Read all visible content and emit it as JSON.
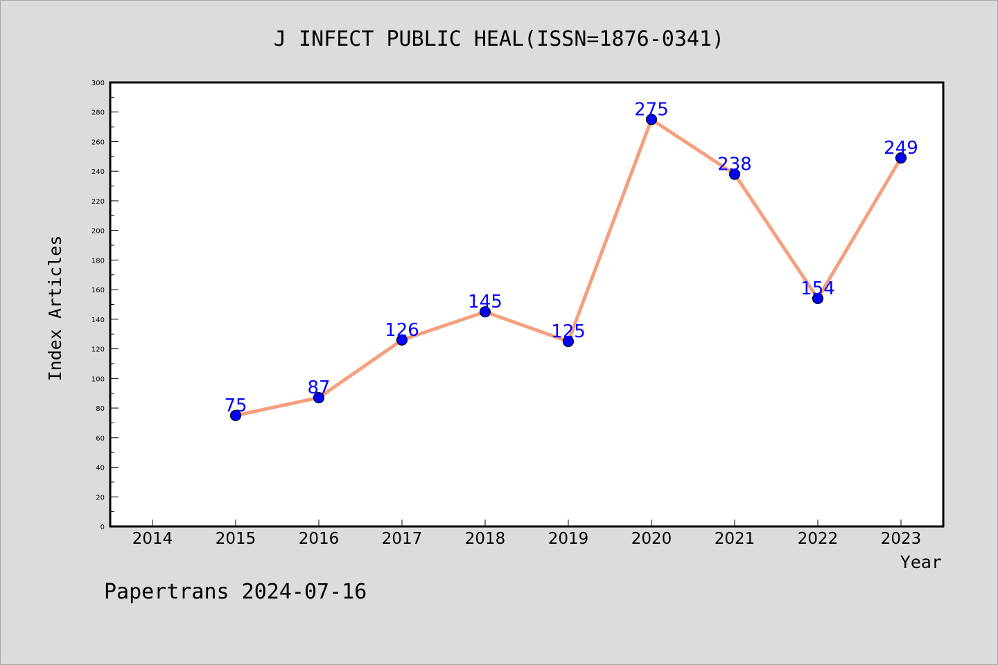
{
  "chart_data": {
    "type": "line",
    "title": "J INFECT PUBLIC HEAL(ISSN=1876-0341)",
    "xlabel": "Year",
    "ylabel": "Index Articles",
    "categories": [
      "2014",
      "2015",
      "2016",
      "2017",
      "2018",
      "2019",
      "2020",
      "2021",
      "2022",
      "2023"
    ],
    "x": [
      "2015",
      "2016",
      "2017",
      "2018",
      "2019",
      "2020",
      "2021",
      "2022",
      "2023"
    ],
    "values": [
      75,
      87,
      126,
      145,
      125,
      275,
      238,
      154,
      249
    ],
    "ylim": [
      0,
      300
    ],
    "yticks": [
      0,
      20,
      40,
      60,
      80,
      100,
      120,
      140,
      160,
      180,
      200,
      220,
      240,
      260,
      280,
      300
    ],
    "grid": false,
    "colors": {
      "line": "#f4a07e",
      "marker": "#0000ff",
      "label": "#0000ff",
      "plot_background": "#ffffff",
      "figure_background": "#dcdcdc"
    }
  },
  "footer": "Papertrans 2024-07-16"
}
